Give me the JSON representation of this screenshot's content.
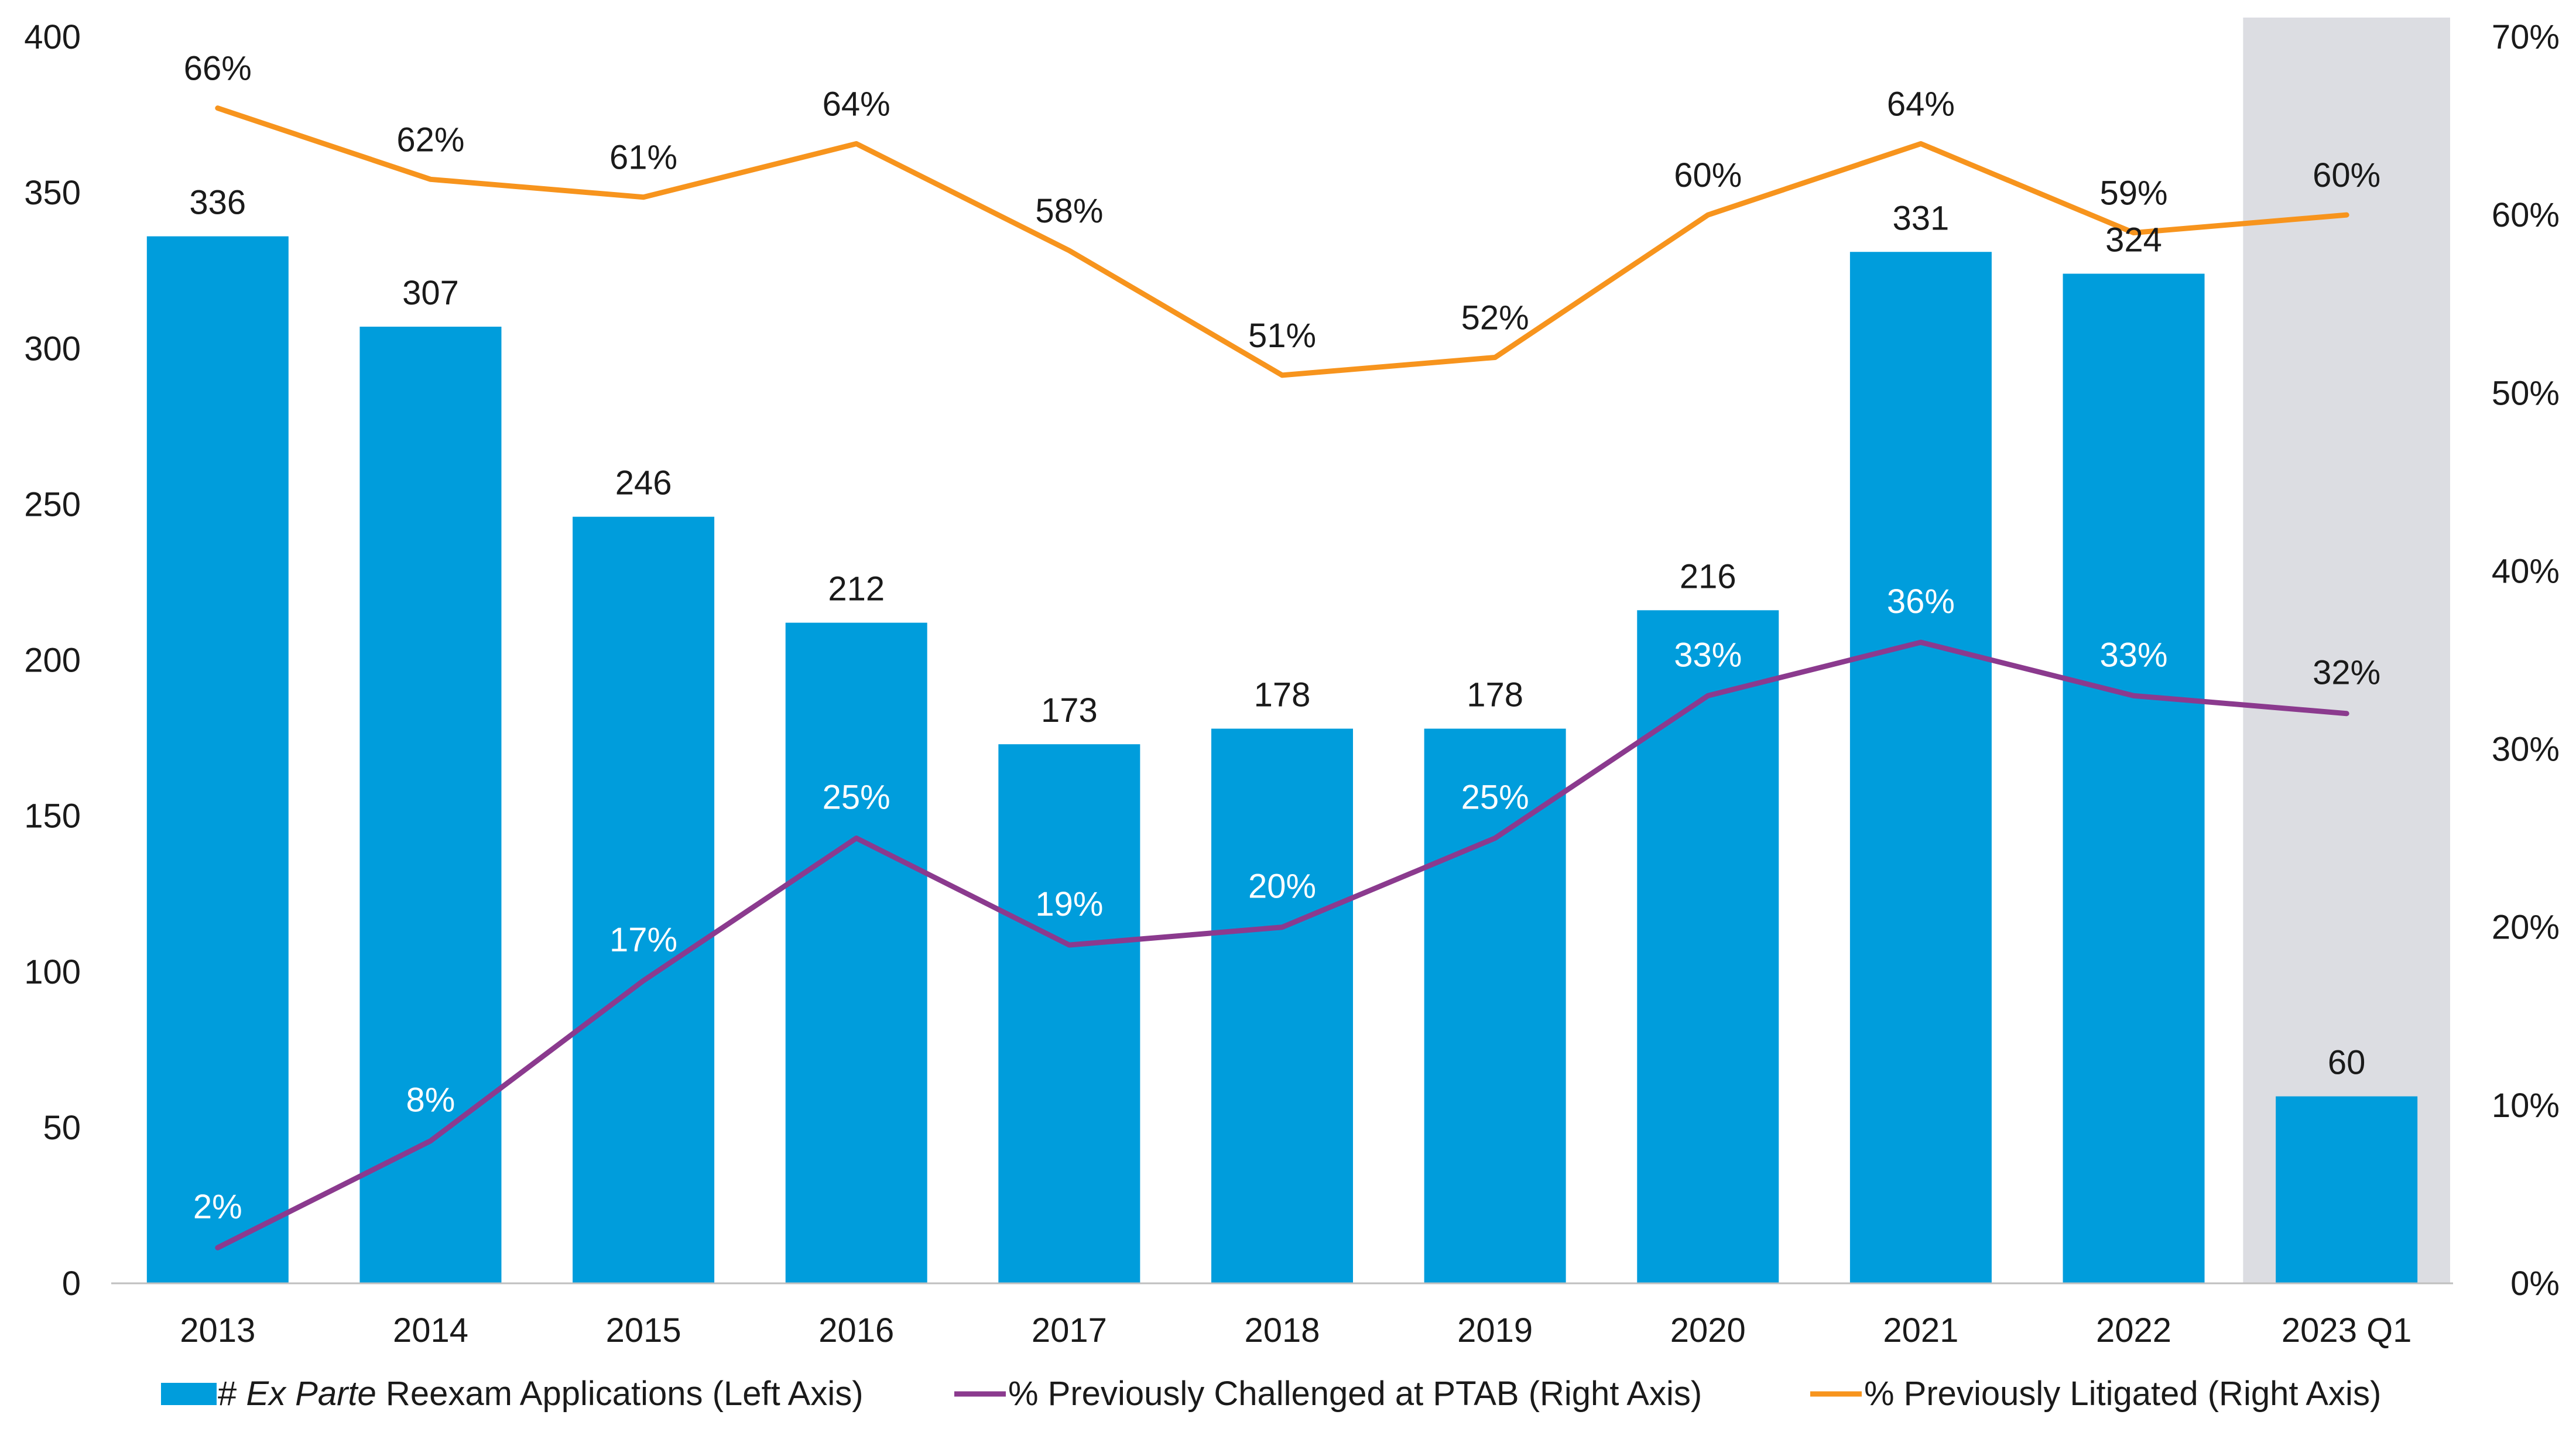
{
  "chart_data": {
    "type": "bar",
    "categories": [
      "2013",
      "2014",
      "2015",
      "2016",
      "2017",
      "2018",
      "2019",
      "2020",
      "2021",
      "2022",
      "2023 Q1"
    ],
    "highlight_category": "2023 Q1",
    "y_left": {
      "ylim": [
        0,
        400
      ],
      "ticks": [
        "0",
        "50",
        "100",
        "150",
        "200",
        "250",
        "300",
        "350",
        "400"
      ]
    },
    "y_right": {
      "ylim": [
        0,
        70
      ],
      "ticks": [
        "0%",
        "10%",
        "20%",
        "30%",
        "40%",
        "50%",
        "60%",
        "70%"
      ]
    },
    "grid": false,
    "legend_position": "bottom",
    "series": [
      {
        "key": "reexam",
        "kind": "bar",
        "axis": "left",
        "name_prefix": "# ",
        "name_italic": "Ex Parte",
        "name_suffix": " Reexam Applications (Left Axis)",
        "color": "#009DDC",
        "values": [
          336,
          307,
          246,
          212,
          173,
          178,
          178,
          216,
          331,
          324,
          60
        ],
        "labels": [
          "336",
          "307",
          "246",
          "212",
          "173",
          "178",
          "178",
          "216",
          "331",
          "324",
          "60"
        ]
      },
      {
        "key": "ptab",
        "kind": "line",
        "axis": "right",
        "name": "% Previously Challenged at PTAB (Right Axis)",
        "color": "#8B3A8E",
        "values": [
          2,
          8,
          17,
          25,
          19,
          20,
          25,
          33,
          36,
          33,
          32
        ],
        "labels": [
          "2%",
          "8%",
          "17%",
          "25%",
          "19%",
          "20%",
          "25%",
          "33%",
          "36%",
          "33%",
          "32%"
        ]
      },
      {
        "key": "litigated",
        "kind": "line",
        "axis": "right",
        "name": "% Previously Litigated (Right Axis)",
        "color": "#F7941D",
        "values": [
          66,
          62,
          61,
          64,
          58,
          51,
          52,
          60,
          64,
          59,
          60
        ],
        "labels": [
          "66%",
          "62%",
          "61%",
          "64%",
          "58%",
          "51%",
          "52%",
          "60%",
          "64%",
          "59%",
          "60%"
        ]
      }
    ]
  }
}
